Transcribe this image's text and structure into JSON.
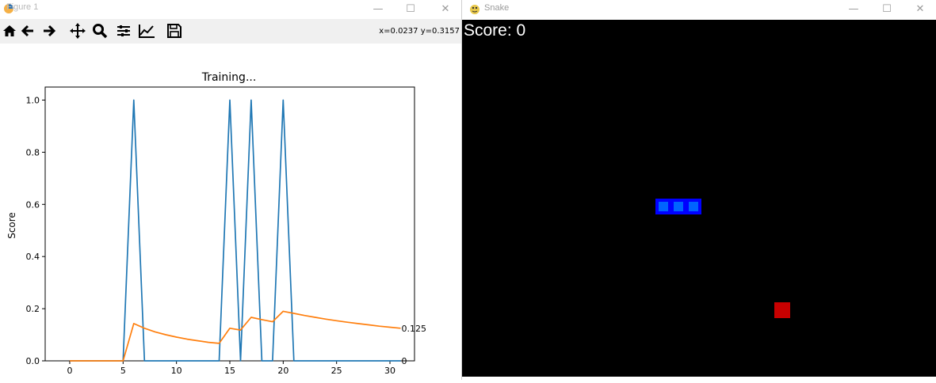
{
  "figure_window": {
    "title": "Figure 1",
    "controls": {
      "minimize": "—",
      "maximize": "☐",
      "close": "✕"
    },
    "toolbar": {
      "buttons": [
        "home-icon",
        "back-arrow-icon",
        "forward-arrow-icon",
        "pan-icon",
        "zoom-icon",
        "configure-subplots-icon",
        "edit-axis-icon",
        "save-icon"
      ],
      "coords": "x=0.0237 y=0.3157"
    }
  },
  "chart_data": {
    "type": "line",
    "title": "Training...",
    "xlabel": "",
    "ylabel": "Score",
    "xlim": [
      -2.3,
      32.3
    ],
    "ylim": [
      0,
      1.05
    ],
    "xticks": [
      0,
      5,
      10,
      15,
      20,
      25,
      30
    ],
    "yticks": [
      0.0,
      0.2,
      0.4,
      0.6,
      0.8,
      1.0
    ],
    "xtick_labels": [
      "0",
      "5",
      "10",
      "15",
      "20",
      "25",
      "30"
    ],
    "ytick_labels": [
      "0.0",
      "0.2",
      "0.4",
      "0.6",
      "0.8",
      "1.0"
    ],
    "series": [
      {
        "color": "#1f77b4",
        "x": [
          0,
          1,
          2,
          3,
          4,
          5,
          6,
          7,
          8,
          9,
          10,
          11,
          12,
          13,
          14,
          15,
          16,
          17,
          18,
          19,
          20,
          21,
          22,
          23,
          24,
          25,
          26,
          27,
          28,
          29,
          30,
          31
        ],
        "values": [
          0,
          0,
          0,
          0,
          0,
          0,
          1,
          0,
          0,
          0,
          0,
          0,
          0,
          0,
          0,
          1,
          0,
          1,
          0,
          0,
          1,
          0,
          0,
          0,
          0,
          0,
          0,
          0,
          0,
          0,
          0,
          0
        ]
      },
      {
        "color": "#ff7f0e",
        "x": [
          0,
          1,
          2,
          3,
          4,
          5,
          6,
          7,
          8,
          9,
          10,
          11,
          12,
          13,
          14,
          15,
          16,
          17,
          18,
          19,
          20,
          21,
          22,
          23,
          24,
          25,
          26,
          27,
          28,
          29,
          30,
          31
        ],
        "values": [
          0,
          0,
          0,
          0,
          0,
          0,
          0.143,
          0.125,
          0.111,
          0.1,
          0.091,
          0.083,
          0.077,
          0.071,
          0.067,
          0.125,
          0.118,
          0.167,
          0.158,
          0.15,
          0.19,
          0.182,
          0.174,
          0.167,
          0.16,
          0.154,
          0.148,
          0.143,
          0.138,
          0.133,
          0.129,
          0.125
        ]
      }
    ],
    "annotations": [
      {
        "x": 31,
        "y": 0.125,
        "text": "0.125"
      },
      {
        "x": 31,
        "y": 0,
        "text": "0"
      }
    ],
    "grid": false
  },
  "game_window": {
    "title": "Snake",
    "controls": {
      "minimize": "—",
      "maximize": "☐",
      "close": "✕"
    },
    "score_text": "Score: 0",
    "colors": {
      "background": "#000000",
      "snake_outer": "#0000ff",
      "snake_inner": "#0064ff",
      "food": "#c80000",
      "score": "#ffffff"
    },
    "snake_cells": [
      [
        12,
        11
      ],
      [
        13,
        11
      ],
      [
        14,
        11
      ]
    ],
    "food_cell": [
      20,
      18
    ]
  }
}
